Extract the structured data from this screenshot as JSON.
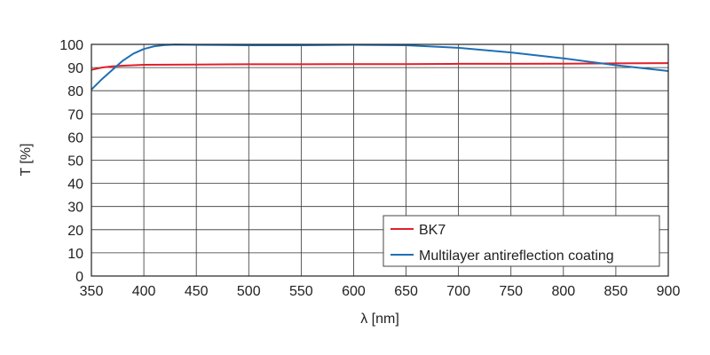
{
  "chart_data": {
    "type": "line",
    "xlabel": "λ [nm]",
    "ylabel": "T [%]",
    "xlim": [
      350,
      900
    ],
    "ylim": [
      0,
      100
    ],
    "x_ticks": [
      350,
      400,
      450,
      500,
      550,
      600,
      650,
      700,
      750,
      800,
      850,
      900
    ],
    "y_ticks": [
      0,
      10,
      20,
      30,
      40,
      50,
      60,
      70,
      80,
      90,
      100
    ],
    "grid": true,
    "legend_position": "bottom-right",
    "series": [
      {
        "name": "BK7",
        "color": "#e0202a",
        "x": [
          350,
          360,
          370,
          380,
          400,
          450,
          500,
          550,
          600,
          650,
          700,
          750,
          800,
          850,
          900
        ],
        "y": [
          89,
          90,
          90.5,
          90.8,
          91.2,
          91.3,
          91.4,
          91.4,
          91.5,
          91.5,
          91.6,
          91.6,
          91.7,
          91.8,
          91.9
        ]
      },
      {
        "name": "Multilayer antireflection coating",
        "color": "#1f6fb4",
        "x": [
          350,
          360,
          370,
          380,
          390,
          400,
          410,
          420,
          430,
          450,
          500,
          550,
          600,
          650,
          700,
          750,
          800,
          850,
          900
        ],
        "y": [
          80.5,
          85,
          89,
          93,
          96,
          98,
          99.2,
          99.7,
          99.9,
          99.8,
          99.6,
          99.6,
          99.8,
          99.6,
          98.5,
          96.5,
          94,
          91,
          88.5
        ]
      }
    ]
  }
}
